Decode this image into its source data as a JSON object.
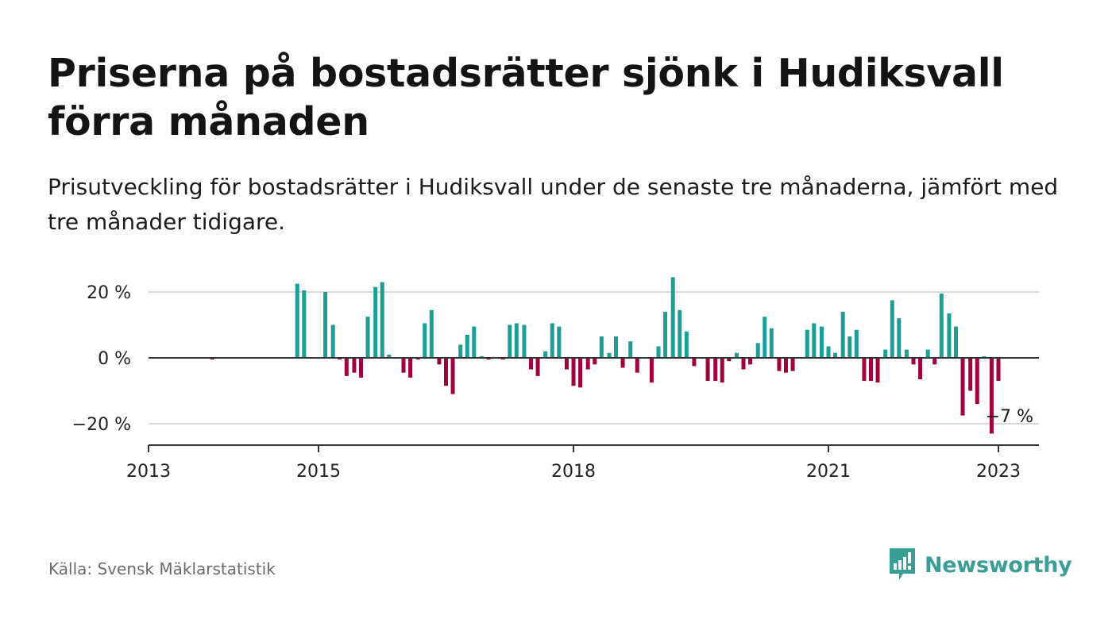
{
  "header": {
    "title": "Priserna på bostadsrätter sjönk i Hudiksvall förra månaden",
    "subtitle": "Prisutveckling för bostadsrätter i Hudiksvall under de senaste tre månaderna, jämfört med tre månader tidigare."
  },
  "footer": {
    "source": "Källa: Svensk Mäklarstatistik",
    "logo_text": "Newsworthy"
  },
  "colors": {
    "positive": "#1a9e96",
    "negative": "#a0003c",
    "logo": "#3a9e96"
  },
  "chart_data": {
    "type": "bar",
    "ylim": [
      -27,
      32
    ],
    "yticks": [
      -20,
      0,
      20
    ],
    "ytick_labels": [
      "−20 %",
      "0 %",
      "20 %"
    ],
    "xlim": [
      2013.0,
      2023.5
    ],
    "xticks": [
      2013,
      2015,
      2018,
      2021,
      2023
    ],
    "xtick_labels": [
      "2013",
      "2015",
      "2018",
      "2021",
      "2023"
    ],
    "grid": true,
    "annotation": {
      "text": "−7 %",
      "x": 2022.96,
      "y": -7
    },
    "values": [
      [
        2013.75,
        -0.5
      ],
      [
        2014.75,
        22.5
      ],
      [
        2014.83,
        20.5
      ],
      [
        2015.08,
        20
      ],
      [
        2015.17,
        10
      ],
      [
        2015.25,
        -0.5
      ],
      [
        2015.33,
        -5.5
      ],
      [
        2015.42,
        -4.5
      ],
      [
        2015.5,
        -6
      ],
      [
        2015.58,
        12.5
      ],
      [
        2015.67,
        21.5
      ],
      [
        2015.75,
        23
      ],
      [
        2015.83,
        1
      ],
      [
        2016.0,
        -4.5
      ],
      [
        2016.08,
        -6
      ],
      [
        2016.17,
        -0.5
      ],
      [
        2016.25,
        10.5
      ],
      [
        2016.33,
        14.5
      ],
      [
        2016.42,
        -2
      ],
      [
        2016.5,
        -8.5
      ],
      [
        2016.58,
        -11
      ],
      [
        2016.67,
        4
      ],
      [
        2016.75,
        7
      ],
      [
        2016.83,
        9.5
      ],
      [
        2016.92,
        0.5
      ],
      [
        2017.0,
        -0.5
      ],
      [
        2017.17,
        -0.5
      ],
      [
        2017.25,
        10
      ],
      [
        2017.33,
        10.5
      ],
      [
        2017.42,
        10
      ],
      [
        2017.5,
        -3.5
      ],
      [
        2017.58,
        -5.5
      ],
      [
        2017.67,
        2
      ],
      [
        2017.75,
        10.5
      ],
      [
        2017.83,
        9.5
      ],
      [
        2017.92,
        -3.5
      ],
      [
        2018.0,
        -8.5
      ],
      [
        2018.08,
        -9
      ],
      [
        2018.17,
        -3.5
      ],
      [
        2018.25,
        -2
      ],
      [
        2018.33,
        6.5
      ],
      [
        2018.42,
        1.5
      ],
      [
        2018.5,
        6.5
      ],
      [
        2018.58,
        -3
      ],
      [
        2018.67,
        5
      ],
      [
        2018.75,
        -4.5
      ],
      [
        2018.92,
        -7.5
      ],
      [
        2019.0,
        3.5
      ],
      [
        2019.08,
        14
      ],
      [
        2019.17,
        24.5
      ],
      [
        2019.25,
        14.5
      ],
      [
        2019.33,
        8
      ],
      [
        2019.42,
        -2.5
      ],
      [
        2019.58,
        -7
      ],
      [
        2019.67,
        -7
      ],
      [
        2019.75,
        -7.5
      ],
      [
        2019.83,
        -1
      ],
      [
        2019.92,
        1.5
      ],
      [
        2020.0,
        -3.5
      ],
      [
        2020.08,
        -2
      ],
      [
        2020.17,
        4.5
      ],
      [
        2020.25,
        12.5
      ],
      [
        2020.33,
        9
      ],
      [
        2020.42,
        -4
      ],
      [
        2020.5,
        -4.5
      ],
      [
        2020.58,
        -4
      ],
      [
        2020.75,
        8.5
      ],
      [
        2020.83,
        10.5
      ],
      [
        2020.92,
        9.5
      ],
      [
        2021.0,
        3.5
      ],
      [
        2021.08,
        1.5
      ],
      [
        2021.17,
        14
      ],
      [
        2021.25,
        6.5
      ],
      [
        2021.33,
        8.5
      ],
      [
        2021.42,
        -7
      ],
      [
        2021.5,
        -7
      ],
      [
        2021.58,
        -7.5
      ],
      [
        2021.67,
        2.5
      ],
      [
        2021.75,
        17.5
      ],
      [
        2021.83,
        12
      ],
      [
        2021.92,
        2.5
      ],
      [
        2022.0,
        -2
      ],
      [
        2022.08,
        -6.5
      ],
      [
        2022.17,
        2.5
      ],
      [
        2022.25,
        -2
      ],
      [
        2022.33,
        19.5
      ],
      [
        2022.42,
        13.5
      ],
      [
        2022.5,
        9.5
      ],
      [
        2022.58,
        -17.5
      ],
      [
        2022.67,
        -10
      ],
      [
        2022.75,
        -14
      ],
      [
        2022.83,
        0.5
      ],
      [
        2022.92,
        -23
      ],
      [
        2023.0,
        -7
      ]
    ]
  }
}
